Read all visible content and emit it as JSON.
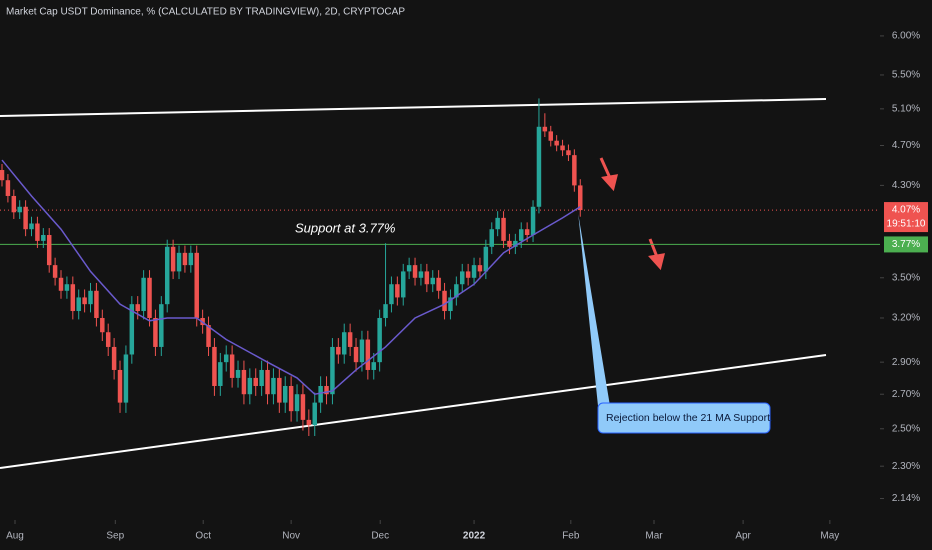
{
  "chart_data": {
    "type": "candlestick",
    "title": "Market Cap USDT Dominance, % (CALCULATED BY TRADINGVIEW), 2D, CRYPTOCAP",
    "open": [
      4.45,
      4.35,
      4.2,
      4.05,
      4.1,
      3.9,
      3.95,
      3.8,
      3.85,
      3.6,
      3.5,
      3.4,
      3.45,
      3.25,
      3.35,
      3.3,
      3.4,
      3.2,
      3.1,
      3.0,
      2.85,
      2.65,
      2.95,
      3.3,
      3.25,
      3.5,
      3.2,
      3.0,
      3.3,
      3.75,
      3.55,
      3.7,
      3.6,
      3.7,
      3.2,
      3.15,
      3.0,
      2.75,
      2.9,
      2.95,
      2.8,
      2.85,
      2.7,
      2.8,
      2.75,
      2.85,
      2.7,
      2.8,
      2.65,
      2.75,
      2.6,
      2.7,
      2.55,
      2.52,
      2.65,
      2.75,
      2.7,
      3.0,
      2.95,
      3.1,
      3.0,
      2.9,
      3.05,
      2.85,
      2.9,
      3.2,
      3.3,
      3.45,
      3.35,
      3.55,
      3.6,
      3.5,
      3.55,
      3.45,
      3.5,
      3.4,
      3.25,
      3.35,
      3.45,
      3.55,
      3.5,
      3.6,
      3.55,
      3.75,
      3.9,
      4.0,
      3.8,
      3.75,
      3.8,
      3.9,
      3.85,
      4.1,
      4.9,
      4.85,
      4.75,
      4.7,
      4.65,
      4.6,
      4.3
    ],
    "high": [
      4.51,
      4.41,
      4.26,
      4.16,
      4.16,
      4.01,
      4.01,
      3.91,
      3.91,
      3.66,
      3.56,
      3.51,
      3.51,
      3.41,
      3.41,
      3.46,
      3.46,
      3.26,
      3.16,
      3.06,
      2.91,
      3.01,
      3.36,
      3.36,
      3.56,
      3.56,
      3.26,
      3.36,
      3.81,
      3.81,
      3.76,
      3.76,
      3.76,
      3.76,
      3.26,
      3.21,
      3.06,
      2.96,
      3.01,
      3.01,
      2.91,
      2.91,
      2.86,
      2.86,
      2.91,
      2.91,
      2.86,
      2.86,
      2.81,
      2.81,
      2.76,
      2.76,
      2.61,
      2.71,
      2.81,
      2.81,
      3.06,
      3.06,
      3.16,
      3.16,
      3.06,
      3.11,
      3.11,
      2.96,
      3.26,
      3.78,
      3.51,
      3.51,
      3.61,
      3.66,
      3.66,
      3.61,
      3.61,
      3.56,
      3.56,
      3.46,
      3.41,
      3.51,
      3.61,
      3.61,
      3.66,
      3.66,
      3.81,
      3.96,
      4.06,
      4.06,
      3.86,
      3.86,
      3.96,
      3.96,
      4.16,
      5.22,
      5.05,
      4.91,
      4.81,
      4.76,
      4.71,
      4.66,
      4.36
    ],
    "low": [
      4.29,
      4.14,
      3.99,
      3.99,
      3.84,
      3.84,
      3.74,
      3.74,
      3.54,
      3.44,
      3.34,
      3.34,
      3.19,
      3.19,
      3.24,
      3.24,
      3.14,
      3.04,
      2.94,
      2.79,
      2.59,
      2.59,
      2.89,
      3.19,
      3.19,
      3.14,
      2.94,
      2.94,
      3.24,
      3.49,
      3.49,
      3.54,
      3.54,
      3.14,
      3.09,
      2.94,
      2.69,
      2.69,
      2.84,
      2.74,
      2.74,
      2.64,
      2.64,
      2.69,
      2.69,
      2.64,
      2.64,
      2.59,
      2.59,
      2.54,
      2.54,
      2.49,
      2.46,
      2.46,
      2.59,
      2.64,
      2.64,
      2.89,
      2.89,
      2.94,
      2.84,
      2.84,
      2.79,
      2.79,
      2.84,
      3.14,
      3.24,
      3.29,
      3.29,
      3.49,
      3.44,
      3.44,
      3.39,
      3.39,
      3.34,
      3.19,
      3.19,
      3.29,
      3.39,
      3.44,
      3.44,
      3.49,
      3.49,
      3.69,
      3.84,
      3.74,
      3.69,
      3.69,
      3.74,
      3.79,
      3.79,
      4.04,
      4.79,
      4.69,
      4.64,
      4.59,
      4.54,
      4.24,
      4.01
    ],
    "close": [
      4.35,
      4.2,
      4.05,
      4.1,
      3.9,
      3.95,
      3.8,
      3.85,
      3.6,
      3.5,
      3.4,
      3.45,
      3.25,
      3.35,
      3.3,
      3.4,
      3.2,
      3.1,
      3.0,
      2.85,
      2.65,
      2.95,
      3.3,
      3.25,
      3.5,
      3.2,
      3.0,
      3.3,
      3.75,
      3.55,
      3.7,
      3.6,
      3.7,
      3.2,
      3.15,
      3.0,
      2.75,
      2.9,
      2.95,
      2.8,
      2.85,
      2.7,
      2.8,
      2.75,
      2.85,
      2.7,
      2.8,
      2.65,
      2.75,
      2.6,
      2.7,
      2.55,
      2.52,
      2.65,
      2.75,
      2.7,
      3.0,
      2.95,
      3.1,
      3.0,
      2.9,
      3.05,
      2.85,
      2.9,
      3.2,
      3.3,
      3.45,
      3.35,
      3.55,
      3.6,
      3.5,
      3.55,
      3.45,
      3.5,
      3.4,
      3.25,
      3.35,
      3.45,
      3.55,
      3.5,
      3.6,
      3.55,
      3.75,
      3.9,
      4.0,
      3.8,
      3.75,
      3.8,
      3.9,
      3.85,
      4.1,
      4.9,
      4.85,
      4.75,
      4.7,
      4.65,
      4.6,
      4.3,
      4.07
    ],
    "up_color": "#26a69a",
    "down_color": "#ef5350",
    "ma": {
      "x": [
        0,
        5,
        10,
        15,
        20,
        25,
        28,
        33,
        38,
        45,
        50,
        53,
        56,
        60,
        65,
        70,
        75,
        80,
        85,
        90,
        95,
        98
      ],
      "values": [
        4.55,
        4.2,
        3.9,
        3.55,
        3.3,
        3.18,
        3.2,
        3.2,
        3.05,
        2.9,
        2.8,
        2.7,
        2.72,
        2.85,
        3.0,
        3.2,
        3.3,
        3.45,
        3.7,
        3.85,
        4.0,
        4.1
      ],
      "color": "#6a5acd"
    },
    "log_y": true,
    "ylim": [
      2.04,
      6.5
    ],
    "yticks": [
      {
        "value": 6.0,
        "label": "6.00%"
      },
      {
        "value": 5.5,
        "label": "5.50%"
      },
      {
        "value": 5.1,
        "label": "5.10%"
      },
      {
        "value": 4.7,
        "label": "4.70%"
      },
      {
        "value": 4.3,
        "label": "4.30%"
      },
      {
        "value": 3.5,
        "label": "3.50%"
      },
      {
        "value": 3.2,
        "label": "3.20%"
      },
      {
        "value": 2.9,
        "label": "2.90%"
      },
      {
        "value": 2.7,
        "label": "2.70%"
      },
      {
        "value": 2.5,
        "label": "2.50%"
      },
      {
        "value": 2.3,
        "label": "2.30%"
      },
      {
        "value": 2.14,
        "label": "2.14%"
      }
    ],
    "xlim": [
      -0.34,
      148.8
    ],
    "xticks": [
      {
        "value": 2.2,
        "label": "Aug"
      },
      {
        "value": 19.2,
        "label": "Sep"
      },
      {
        "value": 34.1,
        "label": "Oct"
      },
      {
        "value": 49,
        "label": "Nov"
      },
      {
        "value": 64.1,
        "label": "Dec"
      },
      {
        "value": 80,
        "label": "2022"
      },
      {
        "value": 96.4,
        "label": "Feb"
      },
      {
        "value": 110.5,
        "label": "Mar"
      },
      {
        "value": 125.6,
        "label": "Apr"
      },
      {
        "value": 140.3,
        "label": "May"
      }
    ],
    "support": {
      "value": 3.77,
      "label": "3.77%",
      "color": "#4caf50"
    },
    "last": {
      "value": 4.07,
      "label": "4.07%",
      "countdown": "19:51:10"
    },
    "annotations": [
      "Support at 3.77%",
      "Rejection below the 21 MA Support."
    ]
  }
}
